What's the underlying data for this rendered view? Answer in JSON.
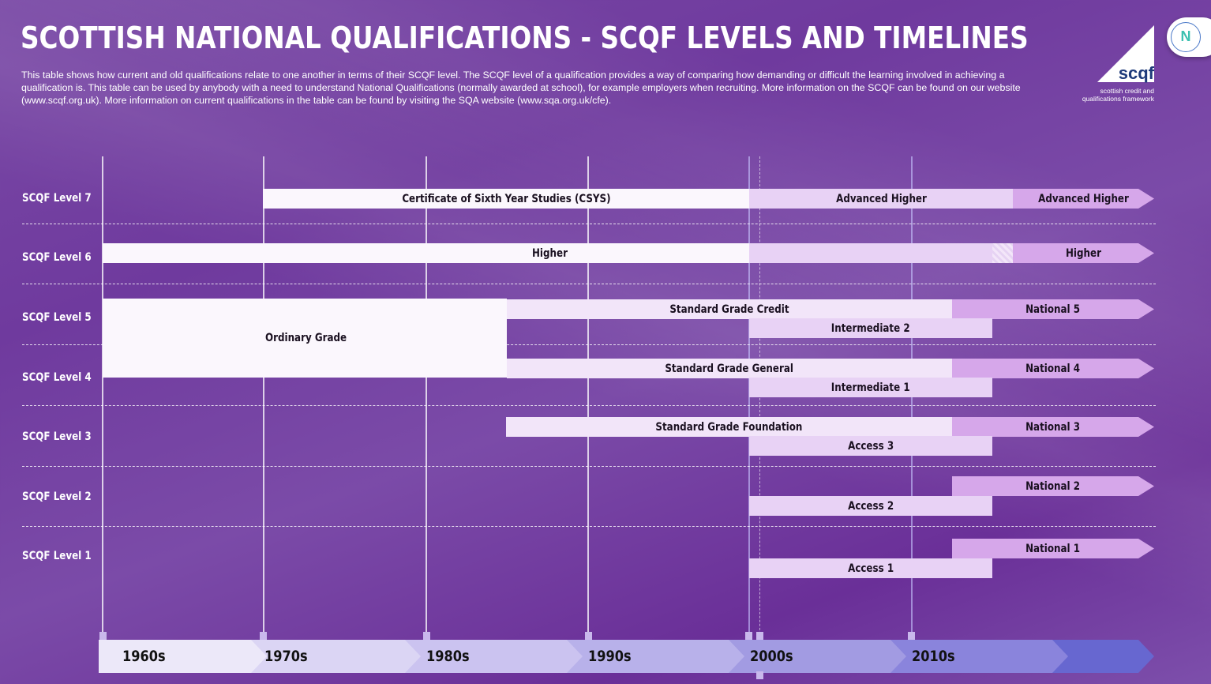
{
  "title": "SCOTTISH NATIONAL QUALIFICATIONS - SCQF LEVELS AND TIMELINES",
  "intro": "This table shows how current and old qualifications relate to one another in terms of their SCQF level. The SCQF level of a qualification provides a way of comparing how demanding or difficult the learning involved in achieving a qualification is. This table can be used by anybody with a need to understand National Qualifications (normally awarded at school), for example employers when recruiting. More information on the SCQF can be found on our website (www.scqf.org.uk). More information on current qualifications in the table can be found by visiting the SQA website (www.sqa.org.uk/cfe).",
  "logo": {
    "word": "scqf",
    "subtitle": "scottish credit and qualifications framework"
  },
  "levels": [
    "SCQF Level 7",
    "SCQF Level 6",
    "SCQF Level 5",
    "SCQF Level 4",
    "SCQF Level 3",
    "SCQF Level 2",
    "SCQF Level 1"
  ],
  "decades": [
    "1960s",
    "1970s",
    "1980s",
    "1990s",
    "2000s",
    "2010s"
  ],
  "bars": {
    "csys": "Certificate of Sixth Year Studies (CSYS)",
    "adv_higher_old": "Advanced Higher",
    "adv_higher_new": "Advanced Higher",
    "higher_old": "Higher",
    "higher_new": "Higher",
    "ordinary": "Ordinary Grade",
    "sg_credit": "Standard Grade Credit",
    "nat5": "National 5",
    "int2": "Intermediate 2",
    "sg_general": "Standard Grade General",
    "nat4": "National 4",
    "int1": "Intermediate 1",
    "sg_foundation": "Standard Grade Foundation",
    "nat3": "National 3",
    "access3": "Access 3",
    "nat2": "National 2",
    "access2": "Access 2",
    "nat1": "National 1",
    "access1": "Access 1"
  },
  "colors": {
    "background": "#7040a0",
    "current": "#d6a7ea",
    "transitional": "#e8d2f5",
    "old": "#fbf7fd"
  }
}
